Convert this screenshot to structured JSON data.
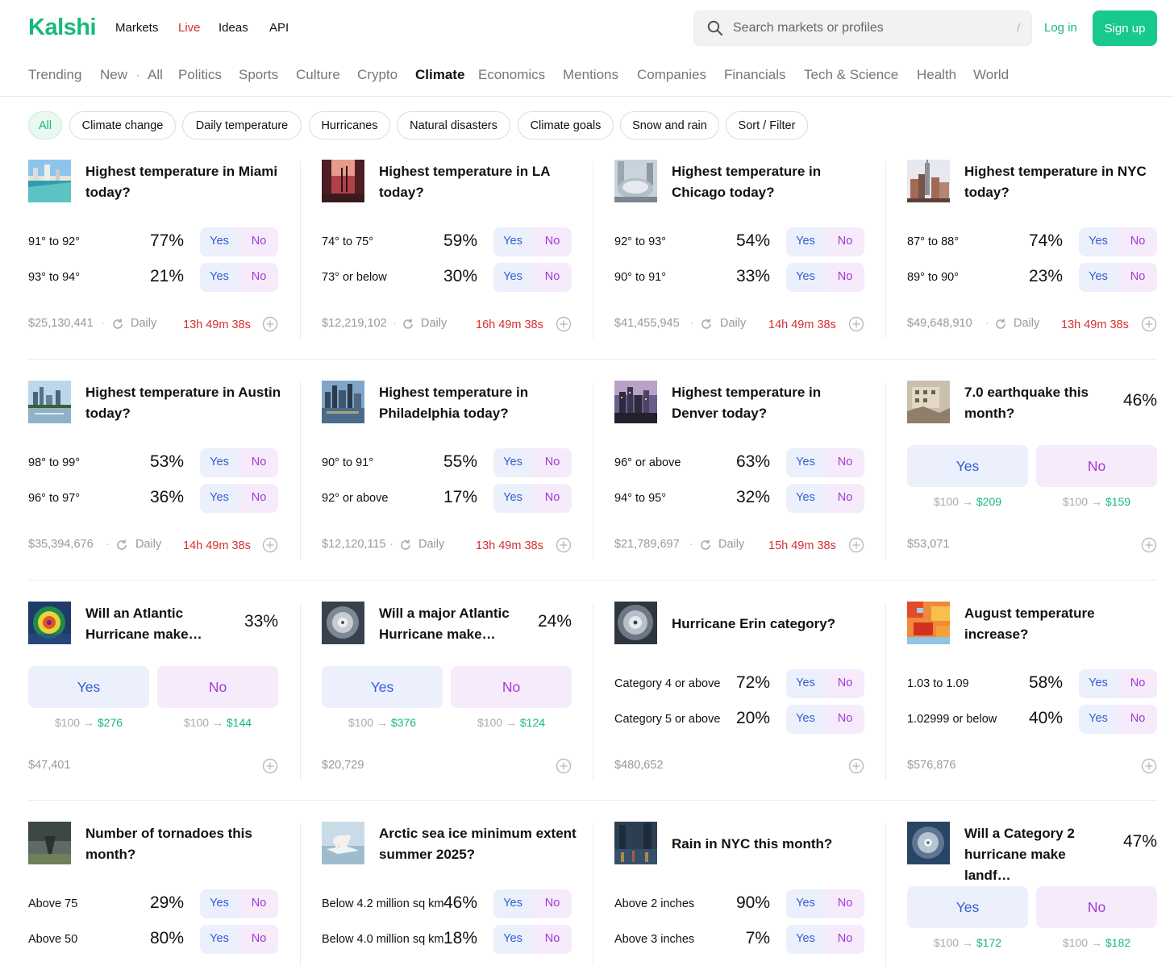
{
  "brand": {
    "name": "Kalshi",
    "color": "#17b978"
  },
  "nav": {
    "links": [
      "Markets",
      "Live",
      "Ideas",
      "API"
    ],
    "live_color": "#d32f2f"
  },
  "search": {
    "placeholder": "Search markets or profiles",
    "shortcut": "/"
  },
  "auth": {
    "login": "Log in",
    "signup": "Sign up"
  },
  "categories": [
    "Trending",
    "New",
    "·",
    "All",
    "Politics",
    "Sports",
    "Culture",
    "Crypto",
    "Climate",
    "Economics",
    "Mentions",
    "Companies",
    "Financials",
    "Tech & Science",
    "Health",
    "World"
  ],
  "active_category": "Climate",
  "chips": [
    "All",
    "Climate change",
    "Daily temperature",
    "Hurricanes",
    "Natural disasters",
    "Climate goals",
    "Snow and rain",
    "Sort / Filter"
  ],
  "colors": {
    "yes": "#2f5fcf",
    "no": "#a23ad2",
    "timer": "#d32f2f",
    "win": "#17b978"
  },
  "yes_label": "Yes",
  "no_label": "No",
  "daily_label": "Daily",
  "cards": [
    {
      "title": "Highest temperature in Miami today?",
      "rows": [
        {
          "label": "91° to 92°",
          "pct": "77%"
        },
        {
          "label": "93° to 94°",
          "pct": "21%"
        }
      ],
      "volume": "$25,130,441",
      "timer": "13h 49m 38s",
      "icon": "beach-thumb"
    },
    {
      "title": "Highest temperature in LA today?",
      "rows": [
        {
          "label": "74° to 75°",
          "pct": "59%"
        },
        {
          "label": "73° or below",
          "pct": "30%"
        }
      ],
      "volume": "$12,219,102",
      "timer": "16h 49m 38s",
      "icon": "palms-thumb"
    },
    {
      "title": "Highest temperature in Chicago today?",
      "rows": [
        {
          "label": "92° to 93°",
          "pct": "54%"
        },
        {
          "label": "90° to 91°",
          "pct": "33%"
        }
      ],
      "volume": "$41,455,945",
      "timer": "14h 49m 38s",
      "icon": "bean-thumb"
    },
    {
      "title": "Highest temperature in NYC today?",
      "rows": [
        {
          "label": "87° to 88°",
          "pct": "74%"
        },
        {
          "label": "89° to 90°",
          "pct": "23%"
        }
      ],
      "volume": "$49,648,910",
      "timer": "13h 49m 38s",
      "icon": "skyline-thumb"
    },
    {
      "title": "Highest temperature in Austin today?",
      "rows": [
        {
          "label": "98° to 99°",
          "pct": "53%"
        },
        {
          "label": "96° to 97°",
          "pct": "36%"
        }
      ],
      "volume": "$35,394,676",
      "timer": "14h 49m 38s",
      "icon": "austin-thumb"
    },
    {
      "title": "Highest temperature in Philadelphia today?",
      "rows": [
        {
          "label": "90° to 91°",
          "pct": "55%"
        },
        {
          "label": "92° or above",
          "pct": "17%"
        }
      ],
      "volume": "$12,120,115",
      "timer": "13h 49m 38s",
      "icon": "philly-thumb"
    },
    {
      "title": "Highest temperature in Denver today?",
      "rows": [
        {
          "label": "96° or above",
          "pct": "63%"
        },
        {
          "label": "94° to 95°",
          "pct": "32%"
        }
      ],
      "volume": "$21,789,697",
      "timer": "15h 49m 38s",
      "icon": "denver-thumb"
    },
    {
      "title": "7.0 earthquake this month?",
      "pct": "46%",
      "yes_payout": {
        "stake": "$100",
        "win": "$209"
      },
      "no_payout": {
        "stake": "$100",
        "win": "$159"
      },
      "volume": "$53,071",
      "icon": "rubble-thumb"
    },
    {
      "title": "Will an Atlantic Hurricane make…",
      "pct": "33%",
      "yes_payout": {
        "stake": "$100",
        "win": "$276"
      },
      "no_payout": {
        "stake": "$100",
        "win": "$144"
      },
      "volume": "$47,401",
      "icon": "radar-thumb"
    },
    {
      "title": "Will a major Atlantic Hurricane make…",
      "pct": "24%",
      "yes_payout": {
        "stake": "$100",
        "win": "$376"
      },
      "no_payout": {
        "stake": "$100",
        "win": "$124"
      },
      "volume": "$20,729",
      "icon": "storm-thumb"
    },
    {
      "title": "Hurricane Erin category?",
      "rows": [
        {
          "label": "Category 4 or above",
          "pct": "72%"
        },
        {
          "label": "Category 5 or above",
          "pct": "20%"
        }
      ],
      "volume": "$480,652",
      "icon": "hurricane-thumb"
    },
    {
      "title": "August temperature increase?",
      "rows": [
        {
          "label": "1.03 to 1.09",
          "pct": "58%"
        },
        {
          "label": "1.02999 or below",
          "pct": "40%"
        }
      ],
      "volume": "$576,876",
      "icon": "heatmap-thumb"
    },
    {
      "title": "Number of tornadoes this month?",
      "rows": [
        {
          "label": "Above 75",
          "pct": "29%"
        },
        {
          "label": "Above 50",
          "pct": "80%"
        }
      ],
      "icon": "tornado-thumb"
    },
    {
      "title": "Arctic sea ice minimum extent summer 2025?",
      "rows": [
        {
          "label": "Below 4.2 million sq km",
          "pct": "46%"
        },
        {
          "label": "Below 4.0 million sq km",
          "pct": "18%"
        }
      ],
      "icon": "polar-bear-thumb"
    },
    {
      "title": "Rain in NYC this month?",
      "rows": [
        {
          "label": "Above 2 inches",
          "pct": "90%"
        },
        {
          "label": "Above 3 inches",
          "pct": "7%"
        }
      ],
      "icon": "rain-thumb"
    },
    {
      "title": "Will a Category 2 hurricane make landf…",
      "pct": "47%",
      "yes_payout": {
        "stake": "$100",
        "win": "$172"
      },
      "no_payout": {
        "stake": "$100",
        "win": "$182"
      },
      "icon": "satellite-thumb"
    }
  ]
}
